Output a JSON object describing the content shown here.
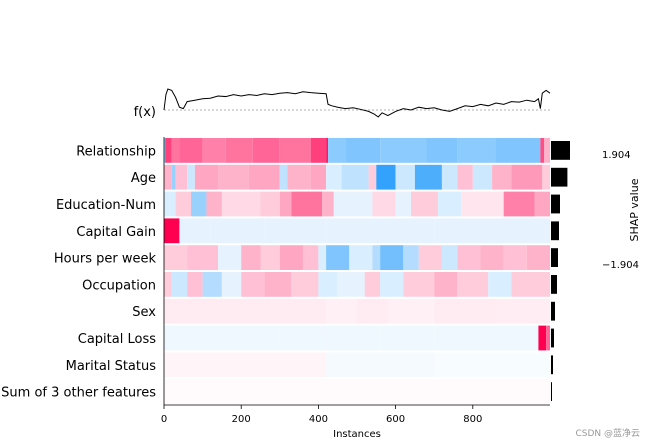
{
  "chart_data": {
    "type": "heatmap",
    "title": "",
    "xlabel": "Instances",
    "colorbar_label": "SHAP value",
    "colorbar_max_label": "1.904",
    "colorbar_min_label": "−1.904",
    "fx_label": "f(x)",
    "n_instances": 1000,
    "x_ticks": [
      0,
      200,
      400,
      600,
      800
    ],
    "x_tick_labels": [
      "0",
      "200",
      "400",
      "600",
      "800"
    ],
    "colors": {
      "positive": "#ff0051",
      "negative": "#008bfb",
      "neutral": "#ffffff",
      "importance_bar": "#000000"
    },
    "features": [
      {
        "name": "Relationship",
        "mean_abs_shap": 0.95,
        "segments": [
          [
            0,
            3,
            -0.4
          ],
          [
            3,
            20,
            0.75
          ],
          [
            20,
            40,
            0.55
          ],
          [
            40,
            100,
            0.6
          ],
          [
            100,
            160,
            0.5
          ],
          [
            160,
            230,
            0.55
          ],
          [
            230,
            300,
            0.6
          ],
          [
            300,
            380,
            0.55
          ],
          [
            380,
            420,
            0.75
          ],
          [
            420,
            425,
            0.9
          ],
          [
            425,
            470,
            -0.45
          ],
          [
            470,
            560,
            -0.5
          ],
          [
            560,
            680,
            -0.45
          ],
          [
            680,
            760,
            -0.5
          ],
          [
            760,
            860,
            -0.45
          ],
          [
            860,
            975,
            -0.5
          ],
          [
            975,
            985,
            0.7
          ],
          [
            985,
            1000,
            0.3
          ]
        ]
      },
      {
        "name": "Age",
        "mean_abs_shap": 0.82,
        "segments": [
          [
            0,
            20,
            0.3
          ],
          [
            20,
            30,
            -0.4
          ],
          [
            30,
            60,
            0.25
          ],
          [
            60,
            80,
            -0.2
          ],
          [
            80,
            140,
            0.35
          ],
          [
            140,
            220,
            0.3
          ],
          [
            220,
            300,
            0.35
          ],
          [
            300,
            320,
            -0.25
          ],
          [
            320,
            380,
            0.3
          ],
          [
            380,
            420,
            0.35
          ],
          [
            420,
            460,
            -0.15
          ],
          [
            460,
            530,
            -0.25
          ],
          [
            530,
            550,
            0.2
          ],
          [
            550,
            600,
            -0.8
          ],
          [
            600,
            650,
            -0.2
          ],
          [
            650,
            720,
            -0.7
          ],
          [
            720,
            760,
            -0.2
          ],
          [
            760,
            800,
            0.25
          ],
          [
            800,
            850,
            -0.2
          ],
          [
            850,
            900,
            0.3
          ],
          [
            900,
            980,
            0.4
          ],
          [
            980,
            1000,
            0.2
          ]
        ]
      },
      {
        "name": "Education-Num",
        "mean_abs_shap": 0.45,
        "segments": [
          [
            0,
            30,
            -0.15
          ],
          [
            30,
            70,
            0.2
          ],
          [
            70,
            110,
            -0.4
          ],
          [
            110,
            150,
            0.3
          ],
          [
            150,
            250,
            0.15
          ],
          [
            250,
            300,
            0.2
          ],
          [
            300,
            330,
            0.35
          ],
          [
            330,
            410,
            0.55
          ],
          [
            410,
            440,
            0.3
          ],
          [
            440,
            540,
            -0.1
          ],
          [
            540,
            600,
            0.15
          ],
          [
            600,
            640,
            -0.1
          ],
          [
            640,
            710,
            0.2
          ],
          [
            710,
            770,
            -0.15
          ],
          [
            770,
            880,
            0.1
          ],
          [
            880,
            960,
            0.5
          ],
          [
            960,
            1000,
            0.35
          ]
        ]
      },
      {
        "name": "Capital Gain",
        "mean_abs_shap": 0.4,
        "segments": [
          [
            0,
            40,
            1.0
          ],
          [
            40,
            120,
            -0.1
          ],
          [
            120,
            260,
            -0.1
          ],
          [
            260,
            420,
            -0.1
          ],
          [
            420,
            540,
            -0.1
          ],
          [
            540,
            700,
            -0.1
          ],
          [
            700,
            860,
            -0.1
          ],
          [
            860,
            1000,
            -0.1
          ]
        ]
      },
      {
        "name": "Hours per week",
        "mean_abs_shap": 0.35,
        "segments": [
          [
            0,
            60,
            0.2
          ],
          [
            60,
            140,
            0.25
          ],
          [
            140,
            200,
            -0.1
          ],
          [
            200,
            250,
            0.3
          ],
          [
            250,
            300,
            0.2
          ],
          [
            300,
            360,
            0.35
          ],
          [
            360,
            400,
            0.25
          ],
          [
            400,
            420,
            -0.15
          ],
          [
            420,
            480,
            -0.5
          ],
          [
            480,
            540,
            -0.15
          ],
          [
            540,
            560,
            -0.3
          ],
          [
            560,
            620,
            -0.55
          ],
          [
            620,
            660,
            -0.3
          ],
          [
            660,
            720,
            0.2
          ],
          [
            720,
            760,
            -0.2
          ],
          [
            760,
            820,
            0.25
          ],
          [
            820,
            880,
            0.3
          ],
          [
            880,
            940,
            0.25
          ],
          [
            940,
            1000,
            0.3
          ]
        ]
      },
      {
        "name": "Occupation",
        "mean_abs_shap": 0.3,
        "segments": [
          [
            0,
            20,
            0.2
          ],
          [
            20,
            60,
            -0.2
          ],
          [
            60,
            100,
            0.25
          ],
          [
            100,
            150,
            -0.3
          ],
          [
            150,
            200,
            -0.1
          ],
          [
            200,
            260,
            0.25
          ],
          [
            260,
            330,
            0.3
          ],
          [
            330,
            400,
            0.2
          ],
          [
            400,
            450,
            -0.15
          ],
          [
            450,
            520,
            -0.1
          ],
          [
            520,
            560,
            0.2
          ],
          [
            560,
            620,
            -0.15
          ],
          [
            620,
            700,
            0.2
          ],
          [
            700,
            760,
            0.3
          ],
          [
            760,
            840,
            0.2
          ],
          [
            840,
            900,
            -0.15
          ],
          [
            900,
            1000,
            0.2
          ]
        ]
      },
      {
        "name": "Sex",
        "mean_abs_shap": 0.2,
        "segments": [
          [
            0,
            420,
            0.08
          ],
          [
            420,
            500,
            0.06
          ],
          [
            500,
            580,
            0.08
          ],
          [
            580,
            700,
            0.06
          ],
          [
            700,
            860,
            0.08
          ],
          [
            860,
            1000,
            0.07
          ]
        ]
      },
      {
        "name": "Capital Loss",
        "mean_abs_shap": 0.15,
        "segments": [
          [
            0,
            300,
            -0.06
          ],
          [
            300,
            420,
            -0.06
          ],
          [
            420,
            540,
            -0.06
          ],
          [
            540,
            560,
            -0.06
          ],
          [
            560,
            700,
            -0.06
          ],
          [
            700,
            860,
            -0.06
          ],
          [
            860,
            970,
            -0.06
          ],
          [
            970,
            990,
            1.0
          ],
          [
            990,
            1000,
            0.6
          ]
        ]
      },
      {
        "name": "Marital Status",
        "mean_abs_shap": 0.1,
        "segments": [
          [
            0,
            420,
            0.04
          ],
          [
            420,
            700,
            -0.04
          ],
          [
            700,
            1000,
            -0.03
          ]
        ]
      },
      {
        "name": "Sum of 3 other features",
        "mean_abs_shap": 0.05,
        "segments": [
          [
            0,
            1000,
            0.02
          ]
        ]
      }
    ],
    "fx_points": [
      [
        0,
        0.0
      ],
      [
        5,
        0.55
      ],
      [
        10,
        0.75
      ],
      [
        20,
        0.7
      ],
      [
        30,
        0.45
      ],
      [
        40,
        0.1
      ],
      [
        50,
        0.05
      ],
      [
        60,
        0.3
      ],
      [
        80,
        0.35
      ],
      [
        100,
        0.4
      ],
      [
        120,
        0.42
      ],
      [
        140,
        0.5
      ],
      [
        160,
        0.48
      ],
      [
        180,
        0.55
      ],
      [
        200,
        0.5
      ],
      [
        220,
        0.55
      ],
      [
        240,
        0.52
      ],
      [
        260,
        0.58
      ],
      [
        280,
        0.55
      ],
      [
        300,
        0.6
      ],
      [
        320,
        0.62
      ],
      [
        340,
        0.58
      ],
      [
        360,
        0.65
      ],
      [
        380,
        0.62
      ],
      [
        400,
        0.6
      ],
      [
        420,
        0.58
      ],
      [
        425,
        0.2
      ],
      [
        435,
        0.15
      ],
      [
        450,
        0.1
      ],
      [
        470,
        0.05
      ],
      [
        490,
        0.08
      ],
      [
        510,
        0.02
      ],
      [
        530,
        -0.05
      ],
      [
        545,
        -0.15
      ],
      [
        555,
        -0.25
      ],
      [
        565,
        -0.1
      ],
      [
        580,
        -0.2
      ],
      [
        600,
        -0.05
      ],
      [
        620,
        0.05
      ],
      [
        640,
        0.0
      ],
      [
        660,
        0.1
      ],
      [
        680,
        0.05
      ],
      [
        700,
        0.08
      ],
      [
        720,
        0.0
      ],
      [
        740,
        -0.05
      ],
      [
        760,
        0.05
      ],
      [
        780,
        0.15
      ],
      [
        800,
        0.12
      ],
      [
        820,
        0.2
      ],
      [
        840,
        0.15
      ],
      [
        860,
        0.25
      ],
      [
        880,
        0.2
      ],
      [
        900,
        0.3
      ],
      [
        920,
        0.28
      ],
      [
        940,
        0.35
      ],
      [
        960,
        0.3
      ],
      [
        970,
        0.4
      ],
      [
        975,
        0.05
      ],
      [
        980,
        0.6
      ],
      [
        990,
        0.7
      ],
      [
        1000,
        0.6
      ]
    ]
  }
}
